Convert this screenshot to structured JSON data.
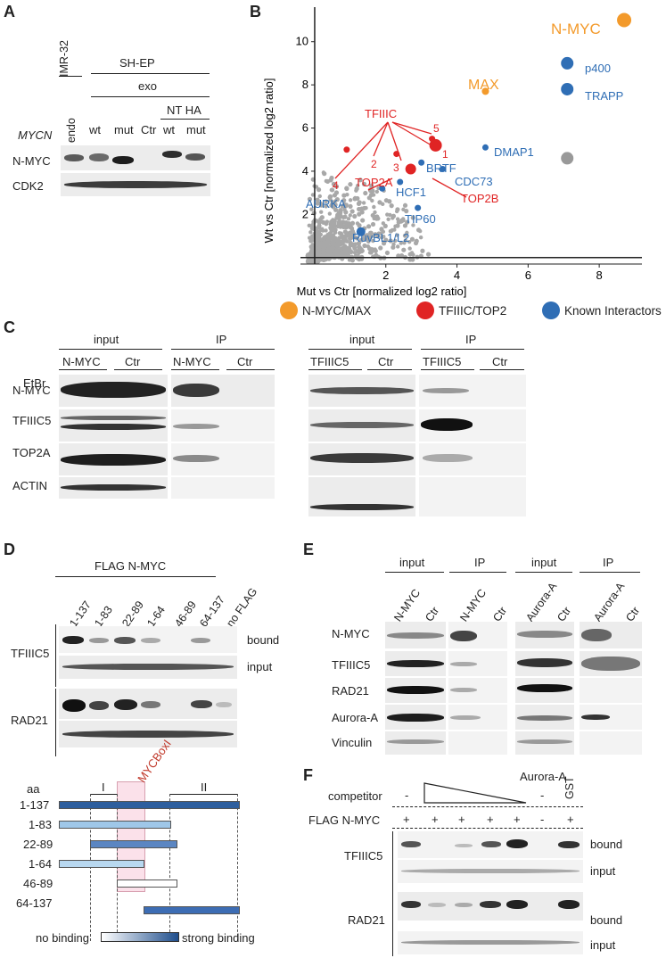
{
  "panel_labels": {
    "a": "A",
    "b": "B",
    "c": "C",
    "d": "D",
    "e": "E",
    "f": "F"
  },
  "panel_a": {
    "groups": [
      "IMR-32",
      "SH-EP",
      "exo",
      "NT HA"
    ],
    "lanes": [
      "endo",
      "wt",
      "mut",
      "Ctr",
      "wt",
      "mut"
    ],
    "gene_label": "MYCN",
    "rows": [
      "N-MYC",
      "CDK2"
    ]
  },
  "panel_b": {
    "legend": [
      {
        "label": "N-MYC/MAX",
        "color": "#f39a2b"
      },
      {
        "label": "TFIIIC/TOP2",
        "color": "#e02424"
      },
      {
        "label": "Known Interactors",
        "color": "#2f6eb5"
      }
    ],
    "annotations": {
      "nmyc": "N-MYC",
      "max": "MAX",
      "p400": "p400",
      "trapp": "TRAPP",
      "dmap1": "DMAP1",
      "tfiiic": "TFIIIC",
      "n1": "1",
      "n2": "2",
      "n3": "3",
      "n4": "4",
      "n5": "5",
      "brtf": "BRTF",
      "cdc73": "CDC73",
      "top2a": "TOP2A",
      "top2b": "TOP2B",
      "hcf1": "HCF1",
      "aurka": "AURKA",
      "tip60": "TIP60",
      "ruvbl": "RuvBL1/L2"
    }
  },
  "chart_data": {
    "type": "scatter",
    "xlabel": "Mut vs Ctr [normalized log2 ratio]",
    "ylabel": "Wt vs Ctr [normalized log2 ratio]",
    "xlim": [
      -0.4,
      9.2
    ],
    "ylim": [
      -0.3,
      11.6
    ],
    "x_ticks": [
      2,
      4,
      6,
      8
    ],
    "y_ticks": [
      2,
      4,
      6,
      8,
      10
    ],
    "grid": false,
    "series": [
      {
        "name": "N-MYC/MAX",
        "color": "#f39a2b",
        "points": [
          {
            "label": "N-MYC",
            "x": 8.7,
            "y": 11.0
          },
          {
            "label": "MAX",
            "x": 4.8,
            "y": 7.7
          }
        ]
      },
      {
        "name": "TFIIIC/TOP2",
        "color": "#e02424",
        "points": [
          {
            "label": "1",
            "x": 3.4,
            "y": 5.2
          },
          {
            "label": "2",
            "x": 2.3,
            "y": 4.8
          },
          {
            "label": "3",
            "x": 2.7,
            "y": 4.1
          },
          {
            "label": "4",
            "x": 0.9,
            "y": 5.0
          },
          {
            "label": "5",
            "x": 3.3,
            "y": 5.5
          }
        ]
      },
      {
        "name": "Known Interactors",
        "color": "#2f6eb5",
        "points": [
          {
            "label": "p400",
            "x": 7.1,
            "y": 9.0
          },
          {
            "label": "TRAPP",
            "x": 7.1,
            "y": 7.8
          },
          {
            "label": "DMAP1",
            "x": 4.8,
            "y": 5.1
          },
          {
            "label": "BRTF",
            "x": 3.0,
            "y": 4.4
          },
          {
            "label": "CDC73",
            "x": 3.6,
            "y": 4.1
          },
          {
            "label": "HCF1",
            "x": 2.4,
            "y": 3.5
          },
          {
            "label": "TIP60",
            "x": 2.9,
            "y": 2.3
          },
          {
            "label": "RuvBL1/L2",
            "x": 1.3,
            "y": 1.2
          },
          {
            "label": "AURKA",
            "x": 1.9,
            "y": 3.2
          }
        ]
      },
      {
        "name": "",
        "color": "#999999",
        "points": [
          {
            "label": "",
            "x": 7.1,
            "y": 4.6
          }
        ]
      }
    ]
  },
  "panel_c": {
    "left": {
      "headers": [
        "input",
        "IP"
      ],
      "groups": [
        "N-MYC",
        "Ctr",
        "N-MYC",
        "Ctr"
      ],
      "treatment": "EtBr",
      "signs": [
        "-",
        "+",
        "-",
        "+",
        "-",
        "+",
        "-",
        "+"
      ],
      "rows": [
        "N-MYC",
        "TFIIIC5",
        "TOP2A",
        "ACTIN"
      ]
    },
    "right": {
      "headers": [
        "input",
        "IP"
      ],
      "groups": [
        "TFIIIC5",
        "Ctr",
        "TFIIIC5",
        "Ctr"
      ],
      "signs": [
        "-",
        "+",
        "-",
        "+",
        "-",
        "+",
        "-",
        "+"
      ]
    }
  },
  "panel_d": {
    "title": "FLAG N-MYC",
    "lanes": [
      "1-137",
      "1-83",
      "22-89",
      "1-64",
      "46-89",
      "64-137",
      "no FLAG"
    ],
    "proteins": [
      "TFIIIC5",
      "RAD21"
    ],
    "states": [
      "bound",
      "input"
    ],
    "map": {
      "aa": "aa",
      "region_1": "I",
      "region_2": "II",
      "box": "MYCBoxI",
      "constructs": [
        "1-137",
        "1-83",
        "22-89",
        "1-64",
        "46-89",
        "64-137"
      ],
      "legend_low": "no binding",
      "legend_high": "strong binding"
    }
  },
  "panel_e": {
    "headers": [
      "input",
      "IP",
      "input",
      "IP"
    ],
    "lanes": [
      "N-MYC",
      "Ctr",
      "N-MYC",
      "Ctr",
      "Aurora-A",
      "Ctr",
      "Aurora-A",
      "Ctr"
    ],
    "rows": [
      "N-MYC",
      "TFIIIC5",
      "RAD21",
      "Aurora-A",
      "Vinculin"
    ]
  },
  "panel_f": {
    "competitor": "competitor",
    "aurora": "Aurora-A",
    "gst": "GST",
    "competitor_signs": [
      "-",
      "-"
    ],
    "flag": "FLAG N-MYC",
    "flag_signs": [
      "+",
      "+",
      "+",
      "+",
      "+",
      "-",
      "+"
    ],
    "proteins": [
      "TFIIIC5",
      "RAD21"
    ],
    "states": [
      "bound",
      "input",
      "bound",
      "input"
    ]
  }
}
